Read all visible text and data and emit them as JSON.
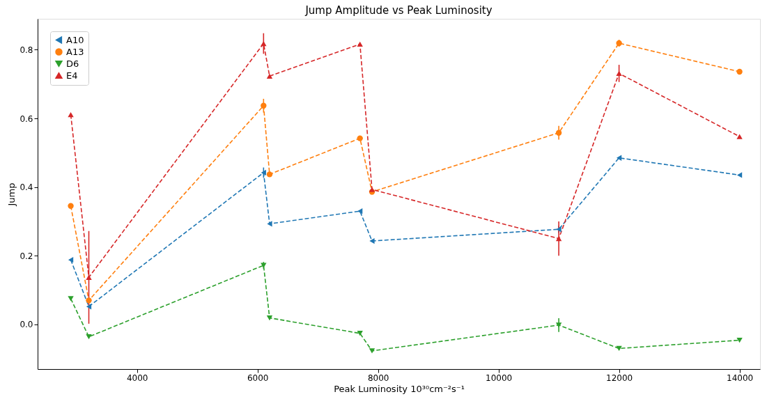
{
  "chart_data": {
    "type": "line",
    "title": "Jump Amplitude vs Peak Luminosity",
    "xlabel": "Peak Luminosity 10³⁰cm⁻²s⁻¹",
    "ylabel": "Jump",
    "x": [
      2900,
      3200,
      6100,
      6200,
      7700,
      7900,
      11000,
      12000,
      14000
    ],
    "series": [
      {
        "name": "A10",
        "color": "#1f77b4",
        "marker": "triangle-left",
        "values": [
          0.188,
          0.052,
          0.442,
          0.293,
          0.33,
          0.243,
          0.277,
          0.485,
          0.435
        ],
        "errors": [
          null,
          null,
          0.015,
          null,
          null,
          null,
          0.01,
          null,
          null
        ]
      },
      {
        "name": "A13",
        "color": "#ff7f0e",
        "marker": "circle",
        "values": [
          0.345,
          0.07,
          0.637,
          0.437,
          0.542,
          0.386,
          0.558,
          0.819,
          0.736
        ],
        "errors": [
          null,
          null,
          0.02,
          null,
          null,
          null,
          0.02,
          0.01,
          null
        ]
      },
      {
        "name": "D6",
        "color": "#2ca02c",
        "marker": "triangle-down",
        "values": [
          0.075,
          -0.036,
          0.172,
          0.019,
          -0.026,
          -0.077,
          -0.002,
          -0.07,
          -0.046
        ],
        "errors": [
          null,
          null,
          0.01,
          null,
          null,
          null,
          0.02,
          null,
          null
        ]
      },
      {
        "name": "E4",
        "color": "#d62728",
        "marker": "triangle-up",
        "values": [
          0.611,
          0.137,
          0.818,
          0.723,
          0.816,
          0.393,
          0.25,
          0.731,
          0.547
        ],
        "errors": [
          null,
          0.135,
          0.03,
          null,
          null,
          null,
          0.05,
          0.025,
          null
        ]
      }
    ],
    "xlim": [
      2350,
      14340
    ],
    "ylim": [
      -0.13,
      0.89
    ],
    "xticks": [
      4000,
      6000,
      8000,
      10000,
      12000,
      14000
    ],
    "yticks": [
      {
        "value": 0,
        "label": "0.0"
      },
      {
        "value": 0.2,
        "label": "0.2"
      },
      {
        "value": 0.4,
        "label": "0.4"
      },
      {
        "value": 0.6,
        "label": "0.6"
      },
      {
        "value": 0.8,
        "label": "0.8"
      }
    ],
    "legend": "top left",
    "grid": false,
    "line_style": "dashed"
  }
}
